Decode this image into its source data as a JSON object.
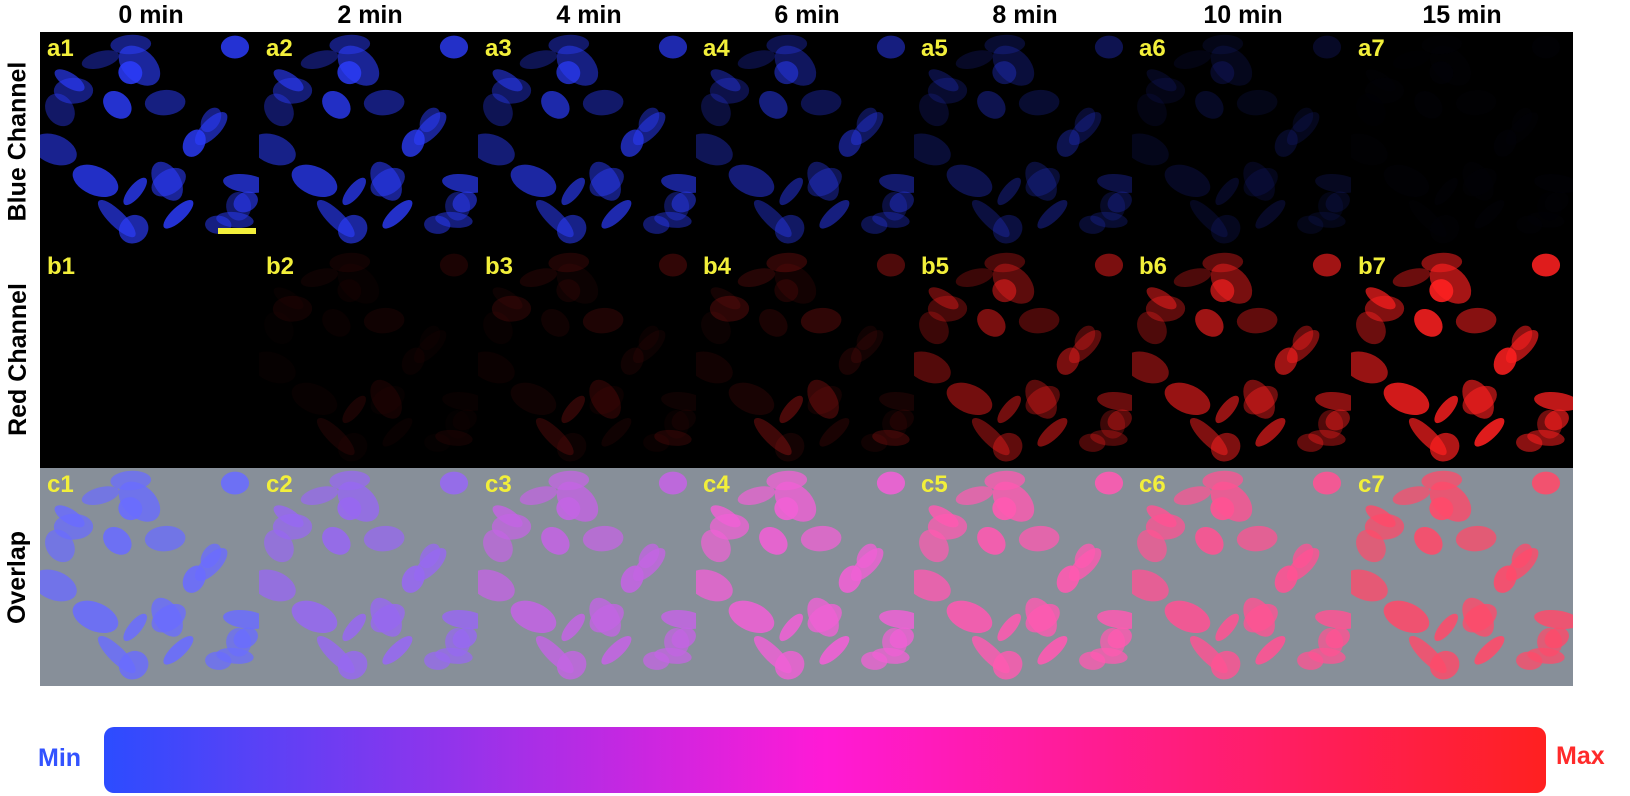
{
  "figure": {
    "time_headers": [
      "0 min",
      "2 min",
      "4 min",
      "6 min",
      "8 min",
      "10 min",
      "15 min"
    ],
    "rows": [
      {
        "label": "Blue Channel",
        "panel_labels": [
          "a1",
          "a2",
          "a3",
          "a4",
          "a5",
          "a6",
          "a7"
        ],
        "tint": "#2c3dff",
        "intensity": [
          1.0,
          0.95,
          0.82,
          0.6,
          0.38,
          0.18,
          0.02
        ]
      },
      {
        "label": "Red Channel",
        "panel_labels": [
          "b1",
          "b2",
          "b3",
          "b4",
          "b5",
          "b6",
          "b7"
        ],
        "tint": "#ff2020",
        "intensity": [
          0.0,
          0.12,
          0.22,
          0.35,
          0.55,
          0.72,
          1.0
        ]
      },
      {
        "label": "Overlap",
        "panel_labels": [
          "c1",
          "c2",
          "c3",
          "c4",
          "c5",
          "c6",
          "c7"
        ],
        "tint": "#8a8fbf",
        "intensity": [
          0.0,
          0.15,
          0.3,
          0.45,
          0.65,
          0.8,
          1.0
        ]
      }
    ],
    "colorbar": {
      "min_label": "Min",
      "max_label": "Max",
      "colors": [
        "#2c4cff",
        "#ff1ad6",
        "#ff2020"
      ]
    }
  }
}
